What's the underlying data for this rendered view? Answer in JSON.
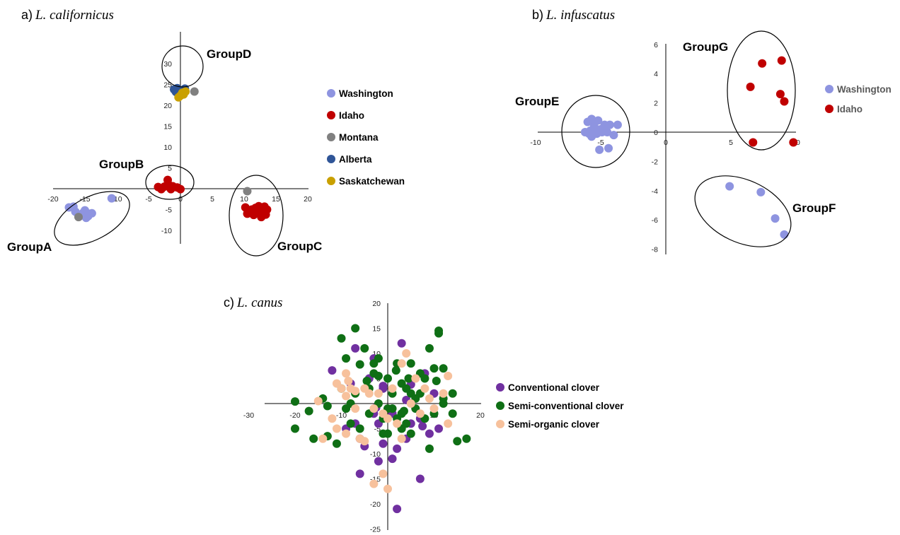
{
  "chart_data": [
    {
      "type": "scatter",
      "panel_label": "a)",
      "title": "L. californicus",
      "xlim": [
        -20,
        20
      ],
      "ylim": [
        -10,
        30
      ],
      "x_ticks": [
        -20,
        -15,
        -10,
        -5,
        0,
        5,
        10,
        15,
        20
      ],
      "y_ticks": [
        -10,
        -5,
        0,
        5,
        10,
        15,
        20,
        25,
        30
      ],
      "grid": false,
      "legend_position": "right",
      "series": [
        {
          "name": "Washington",
          "color": "#8e94e0",
          "points": [
            [
              -17.5,
              -4.5
            ],
            [
              -16.8,
              -4.3
            ],
            [
              -16.5,
              -5.5
            ],
            [
              -16.0,
              -6.2
            ],
            [
              -15.8,
              -6.6
            ],
            [
              -15.3,
              -5.8
            ],
            [
              -15.0,
              -5.2
            ],
            [
              -14.5,
              -6.6
            ],
            [
              -14.2,
              -6.0
            ],
            [
              -14.8,
              -7.0
            ],
            [
              -13.9,
              -5.9
            ],
            [
              -10.8,
              -2.3
            ]
          ]
        },
        {
          "name": "Idaho",
          "color": "#c00000",
          "points": [
            [
              -3.5,
              0.4
            ],
            [
              -3.0,
              -0.1
            ],
            [
              -2.5,
              0.5
            ],
            [
              -2.0,
              2.1
            ],
            [
              -1.8,
              0.9
            ],
            [
              -1.5,
              -0.1
            ],
            [
              -1.2,
              0.6
            ],
            [
              -0.5,
              0.3
            ],
            [
              0.0,
              -0.1
            ],
            [
              10.2,
              -4.5
            ],
            [
              10.5,
              -6.0
            ],
            [
              11.2,
              -5.0
            ],
            [
              11.5,
              -6.3
            ],
            [
              11.8,
              -4.6
            ],
            [
              12.1,
              -5.5
            ],
            [
              12.3,
              -4.2
            ],
            [
              12.5,
              -6.0
            ],
            [
              12.7,
              -6.8
            ],
            [
              13.0,
              -5.1
            ],
            [
              13.2,
              -4.3
            ],
            [
              13.4,
              -6.2
            ],
            [
              13.6,
              -5.0
            ],
            [
              12.9,
              -4.7
            ],
            [
              11.9,
              -5.8
            ]
          ]
        },
        {
          "name": "Montana",
          "color": "#808080",
          "points": [
            [
              -16.0,
              -6.8
            ],
            [
              10.5,
              -0.6
            ],
            [
              2.2,
              23.3
            ]
          ]
        },
        {
          "name": "Alberta",
          "color": "#2f5597",
          "points": [
            [
              -1.0,
              23.8
            ],
            [
              -0.5,
              24.1
            ],
            [
              0.1,
              23.6
            ],
            [
              -0.2,
              22.8
            ],
            [
              0.7,
              24.0
            ],
            [
              -0.7,
              23.2
            ]
          ]
        },
        {
          "name": "Saskatchewan",
          "color": "#c9a000",
          "points": [
            [
              0.0,
              22.3
            ],
            [
              0.3,
              23.0
            ],
            [
              -0.3,
              21.9
            ],
            [
              0.5,
              22.6
            ],
            [
              0.8,
              23.3
            ]
          ]
        }
      ],
      "group_labels": [
        "GroupA",
        "GroupB",
        "GroupC",
        "GroupD"
      ]
    },
    {
      "type": "scatter",
      "panel_label": "b)",
      "title": "L. infuscatus",
      "xlim": [
        -10,
        10
      ],
      "ylim": [
        -8,
        6
      ],
      "x_ticks": [
        -10,
        -5,
        0,
        5,
        10
      ],
      "y_ticks": [
        -8,
        -6,
        -4,
        -2,
        0,
        2,
        4,
        6
      ],
      "grid": false,
      "legend_position": "right",
      "series": [
        {
          "name": "Washington",
          "color": "#8e94e0",
          "points": [
            [
              -6.2,
              0.0
            ],
            [
              -6.0,
              0.7
            ],
            [
              -5.8,
              0.1
            ],
            [
              -5.7,
              -0.3
            ],
            [
              -5.5,
              0.4
            ],
            [
              -5.3,
              -0.1
            ],
            [
              -5.2,
              0.8
            ],
            [
              -5.0,
              0.2
            ],
            [
              -4.7,
              0.5
            ],
            [
              -4.5,
              -0.0
            ],
            [
              -4.3,
              0.5
            ],
            [
              -4.0,
              -0.2
            ],
            [
              -3.7,
              0.5
            ],
            [
              -5.1,
              -1.2
            ],
            [
              -4.4,
              -1.1
            ],
            [
              -5.7,
              0.9
            ],
            [
              -5.9,
              -0.1
            ],
            [
              -4.9,
              0.0
            ],
            [
              4.9,
              -3.7
            ],
            [
              7.3,
              -4.1
            ],
            [
              8.4,
              -5.9
            ],
            [
              9.1,
              -7.0
            ]
          ]
        },
        {
          "name": "Idaho",
          "color": "#c00000",
          "points": [
            [
              7.4,
              4.7
            ],
            [
              8.9,
              4.9
            ],
            [
              6.5,
              3.1
            ],
            [
              8.8,
              2.6
            ],
            [
              9.1,
              2.1
            ],
            [
              6.7,
              -0.7
            ],
            [
              9.8,
              -0.7
            ]
          ]
        }
      ],
      "group_labels": [
        "GroupE",
        "GroupF",
        "GroupG"
      ]
    },
    {
      "type": "scatter",
      "panel_label": "c)",
      "title": "L. canus",
      "xlim": [
        -30,
        20
      ],
      "ylim": [
        -25,
        20
      ],
      "x_ticks": [
        -30,
        -20,
        -10,
        0,
        10,
        20
      ],
      "y_ticks": [
        -25,
        -20,
        -15,
        -10,
        -5,
        0,
        5,
        10,
        15,
        20
      ],
      "grid": false,
      "legend_position": "right",
      "series": [
        {
          "name": "Conventional clover",
          "color": "#7030a0",
          "points": [
            [
              -12,
              6.6
            ],
            [
              -8,
              4
            ],
            [
              -7,
              11
            ],
            [
              -4,
              5
            ],
            [
              -3,
              9
            ],
            [
              -1,
              3
            ],
            [
              3,
              12
            ],
            [
              5,
              3.8
            ],
            [
              8,
              6
            ],
            [
              -9,
              -5
            ],
            [
              -6,
              -7
            ],
            [
              -3,
              -2
            ],
            [
              -2,
              -4
            ],
            [
              -1,
              -8
            ],
            [
              1,
              -2
            ],
            [
              2,
              -9
            ],
            [
              4,
              -7
            ],
            [
              5,
              -4
            ],
            [
              7,
              -3
            ],
            [
              9,
              -6
            ],
            [
              11,
              -5
            ],
            [
              -2.5,
              -0.8
            ],
            [
              4,
              0.7
            ],
            [
              7.5,
              -4.5
            ],
            [
              -5,
              -8.5
            ],
            [
              -2,
              -11.5
            ],
            [
              1,
              -11
            ],
            [
              -6,
              -14
            ],
            [
              7,
              -15
            ],
            [
              2,
              -21
            ],
            [
              10,
              2
            ],
            [
              -1,
              3.5
            ],
            [
              -7,
              -4
            ]
          ]
        },
        {
          "name": "Semi-conventional clover",
          "color": "#0f6f15",
          "points": [
            [
              -20,
              0.4
            ],
            [
              -17,
              -1.5
            ],
            [
              -14,
              1
            ],
            [
              -10,
              13
            ],
            [
              -9,
              9
            ],
            [
              -7,
              15
            ],
            [
              -6,
              7.8
            ],
            [
              -5,
              11
            ],
            [
              -4,
              3
            ],
            [
              -3,
              6
            ],
            [
              -2,
              0
            ],
            [
              -1,
              -3
            ],
            [
              0,
              5
            ],
            [
              0,
              -6
            ],
            [
              1,
              2
            ],
            [
              1,
              -1
            ],
            [
              2,
              8
            ],
            [
              3,
              4
            ],
            [
              3,
              -2
            ],
            [
              4,
              -4
            ],
            [
              5,
              8
            ],
            [
              5,
              2
            ],
            [
              6,
              -1
            ],
            [
              7,
              6
            ],
            [
              8,
              -3
            ],
            [
              9,
              11
            ],
            [
              10,
              -2
            ],
            [
              11,
              14
            ],
            [
              12,
              7
            ],
            [
              12,
              1
            ],
            [
              14,
              2
            ],
            [
              14,
              -2
            ],
            [
              15,
              -7.5
            ],
            [
              17,
              -7
            ],
            [
              -20,
              -5
            ],
            [
              -16,
              -7
            ],
            [
              -13,
              -6.5
            ],
            [
              -11,
              -8
            ],
            [
              -9,
              -1
            ],
            [
              -8,
              -4
            ],
            [
              -6,
              -5
            ],
            [
              -4,
              -2
            ],
            [
              -3,
              8
            ],
            [
              -2,
              9
            ],
            [
              -1,
              -6
            ],
            [
              0,
              -1
            ],
            [
              2,
              -3
            ],
            [
              3,
              -5
            ],
            [
              4,
              3
            ],
            [
              5,
              -6
            ],
            [
              6,
              1
            ],
            [
              7,
              2
            ],
            [
              8,
              5
            ],
            [
              9,
              -9
            ],
            [
              10,
              7
            ],
            [
              11,
              14.5
            ],
            [
              12,
              0
            ],
            [
              -7,
              2
            ],
            [
              -2,
              5.5
            ],
            [
              3.5,
              -1.5
            ],
            [
              -4.5,
              4.5
            ],
            [
              1.8,
              6.6
            ],
            [
              4.5,
              5
            ],
            [
              -10,
              3
            ],
            [
              -8,
              0
            ],
            [
              -13,
              -0.5
            ],
            [
              10.5,
              4.5
            ]
          ]
        },
        {
          "name": "Semi-organic clover",
          "color": "#f7c19c",
          "points": [
            [
              -15,
              0.5
            ],
            [
              -14,
              -7
            ],
            [
              -12,
              -3
            ],
            [
              -11,
              4
            ],
            [
              -10,
              3
            ],
            [
              -9,
              1.5
            ],
            [
              -9,
              6
            ],
            [
              -8,
              3
            ],
            [
              -7,
              -1
            ],
            [
              -6,
              -7
            ],
            [
              -5,
              -7.5
            ],
            [
              -4,
              2
            ],
            [
              -3,
              -1
            ],
            [
              -2,
              2
            ],
            [
              -1,
              -2
            ],
            [
              0,
              -3
            ],
            [
              1,
              3
            ],
            [
              2,
              -4
            ],
            [
              3,
              8
            ],
            [
              3,
              -7
            ],
            [
              4,
              10
            ],
            [
              5,
              0
            ],
            [
              6,
              5
            ],
            [
              7,
              -2
            ],
            [
              8,
              3
            ],
            [
              9,
              1
            ],
            [
              10,
              -1
            ],
            [
              12,
              2
            ],
            [
              13,
              5.5
            ],
            [
              13,
              -4
            ],
            [
              -9,
              -6
            ],
            [
              -11,
              -5
            ],
            [
              -3,
              -16
            ],
            [
              -1,
              -14
            ],
            [
              0,
              -17
            ],
            [
              -5,
              3
            ],
            [
              -7,
              2.5
            ],
            [
              -8.5,
              4.5
            ]
          ]
        }
      ]
    }
  ],
  "legend_text_colors": {
    "a": "#000000",
    "b": "#595959",
    "c": "#000000"
  }
}
